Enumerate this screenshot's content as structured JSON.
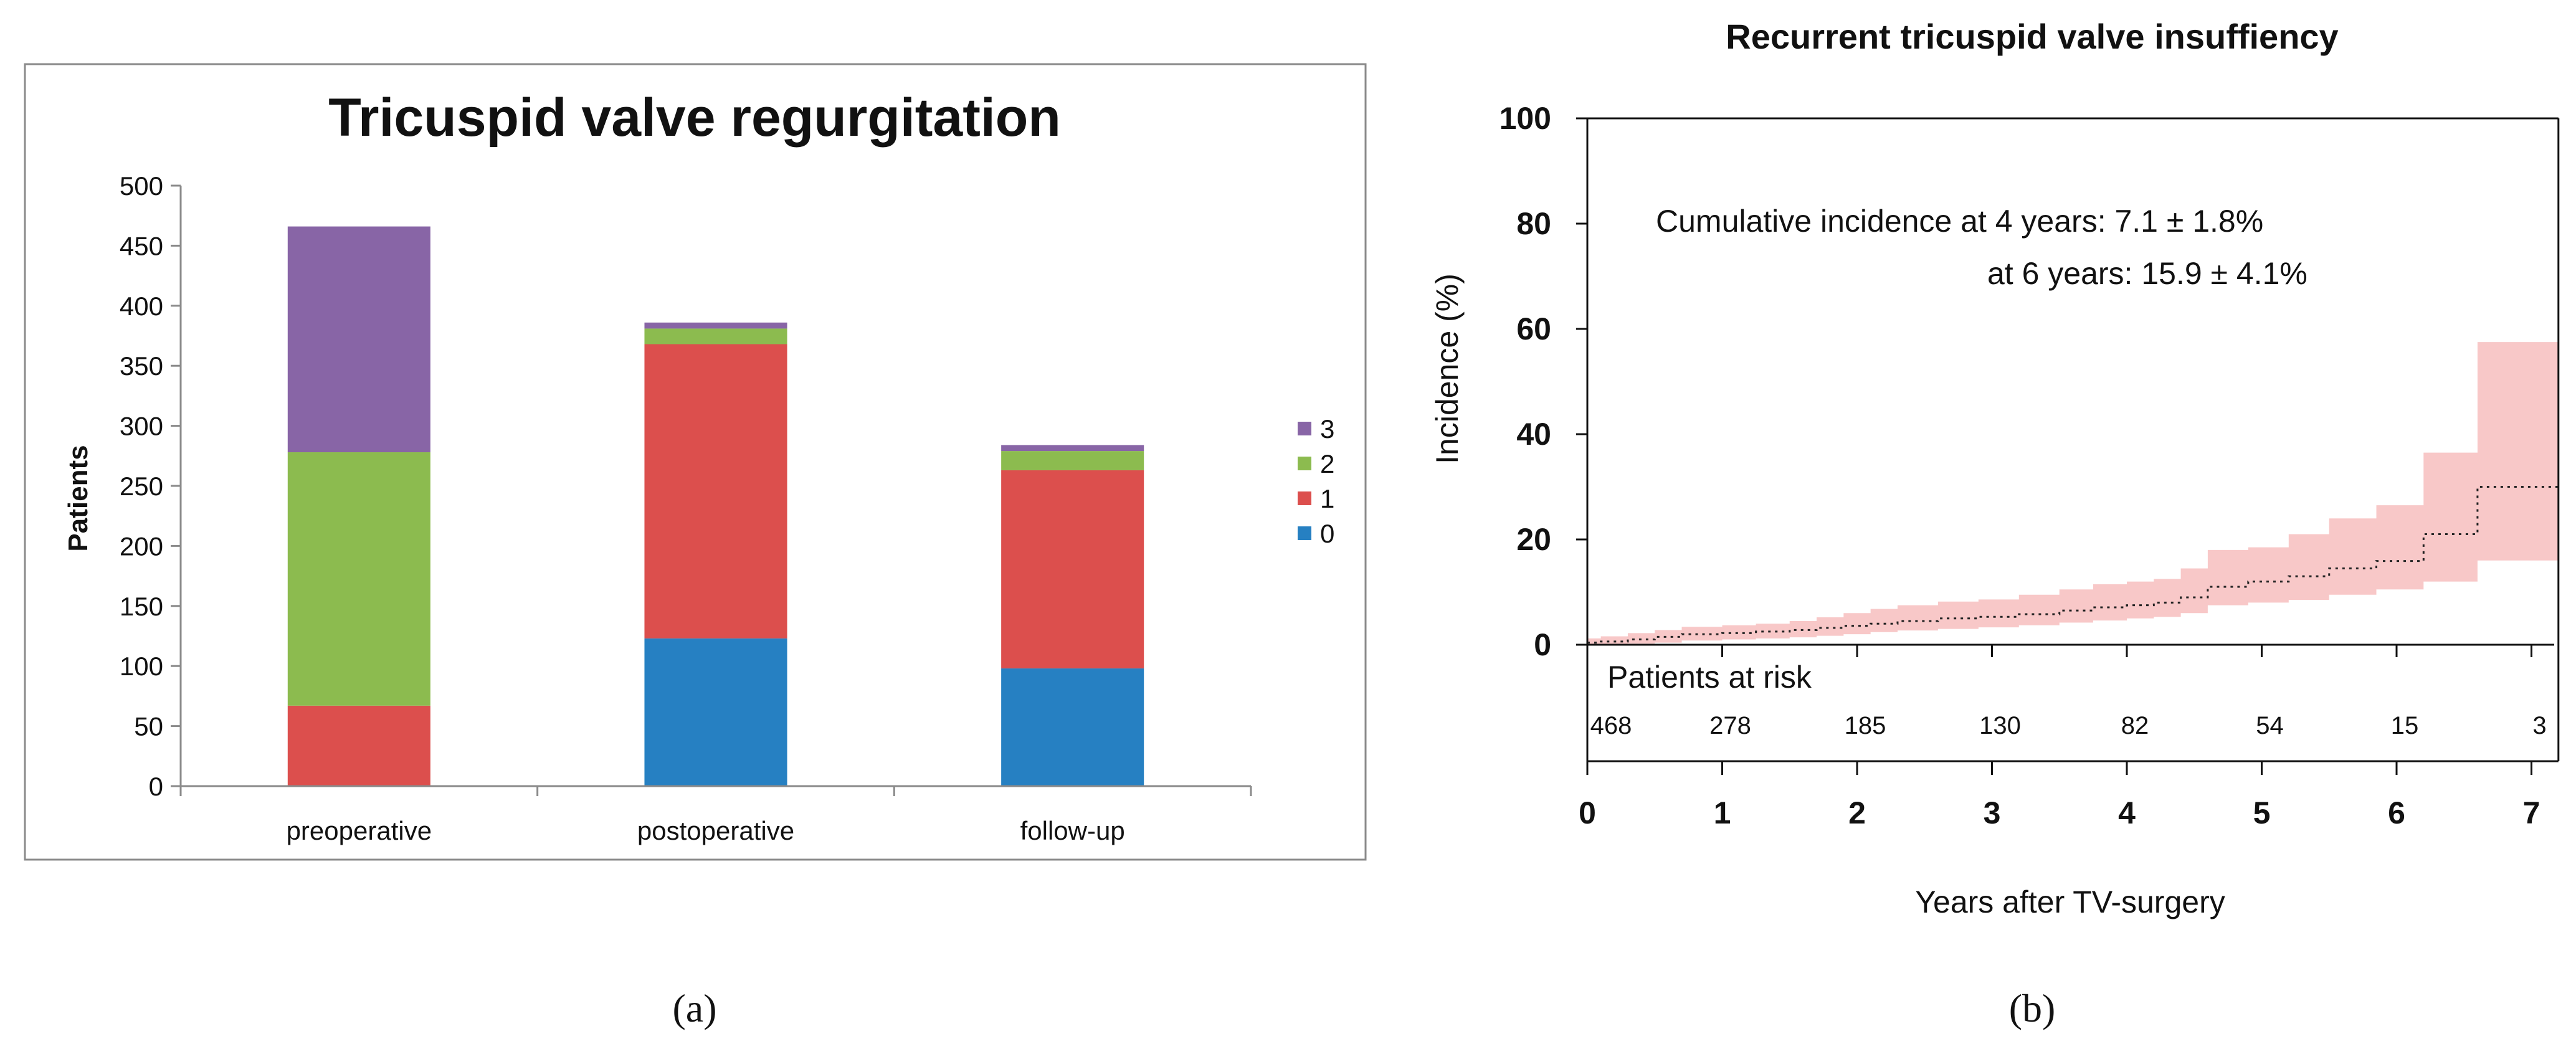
{
  "panels": [
    {
      "id": "a",
      "caption": "(a)",
      "chart_data": {
        "type": "bar",
        "stacked": true,
        "title": "Tricuspid valve regurgitation",
        "xlabel": "",
        "ylabel": "Patients",
        "ylim": [
          0,
          500
        ],
        "yticks": [
          "0",
          "50",
          "100",
          "150",
          "200",
          "250",
          "300",
          "350",
          "400",
          "450",
          "500"
        ],
        "categories": [
          "preoperative",
          "postoperative",
          "follow-up"
        ],
        "series": [
          {
            "name": "0",
            "color": "#2680c2",
            "values": [
              0,
              123,
              98
            ]
          },
          {
            "name": "1",
            "color": "#dc4f4d",
            "values": [
              67,
              245,
              165
            ]
          },
          {
            "name": "2",
            "color": "#8cbb4f",
            "values": [
              211,
              13,
              16
            ]
          },
          {
            "name": "3",
            "color": "#8865a6",
            "values": [
              188,
              5,
              5
            ]
          }
        ],
        "legend_order": [
          "3",
          "2",
          "1",
          "0"
        ],
        "legend_position": "right",
        "grid": false
      }
    },
    {
      "id": "b",
      "caption": "(b)",
      "chart_data": {
        "type": "line",
        "subtype": "step",
        "title": "Recurrent tricuspid valve insuffiency",
        "xlabel": "Years after TV-surgery",
        "ylabel": "Incidence (%)",
        "xlim": [
          0,
          7.2
        ],
        "ylim": [
          0,
          100
        ],
        "xticks": [
          "0",
          "1",
          "2",
          "3",
          "4",
          "5",
          "6",
          "7"
        ],
        "yticks": [
          "0",
          "20",
          "40",
          "60",
          "80",
          "100"
        ],
        "annotations": [
          "Cumulative incidence at 4 years: 7.1 ± 1.8%",
          "at 6 years: 15.9 ± 4.1%"
        ],
        "series": [
          {
            "name": "Cumulative incidence",
            "style": "dotted",
            "color": "#222222",
            "x": [
              0,
              0.1,
              0.3,
              0.5,
              0.7,
              1.0,
              1.25,
              1.5,
              1.7,
              1.9,
              2.1,
              2.3,
              2.6,
              2.9,
              3.2,
              3.5,
              3.75,
              4.0,
              4.2,
              4.4,
              4.6,
              4.9,
              5.2,
              5.5,
              5.85,
              6.2,
              6.6,
              7.2
            ],
            "y": [
              0.4,
              0.6,
              1.0,
              1.5,
              2.0,
              2.2,
              2.5,
              2.8,
              3.2,
              3.6,
              4.0,
              4.5,
              5.0,
              5.3,
              5.8,
              6.5,
              7.1,
              7.5,
              8.0,
              9.0,
              11.0,
              12.0,
              13.0,
              14.5,
              15.9,
              21.0,
              30.0,
              30.0
            ]
          }
        ],
        "confidence_band": {
          "color": "#f8c8c8",
          "x": [
            0,
            0.1,
            0.3,
            0.5,
            0.7,
            1.0,
            1.25,
            1.5,
            1.7,
            1.9,
            2.1,
            2.3,
            2.6,
            2.9,
            3.2,
            3.5,
            3.75,
            4.0,
            4.2,
            4.4,
            4.6,
            4.9,
            5.2,
            5.5,
            5.85,
            6.2,
            6.6,
            7.2
          ],
          "lower": [
            0,
            0,
            0.2,
            0.4,
            0.8,
            1.0,
            1.2,
            1.4,
            1.7,
            2.0,
            2.4,
            2.7,
            3.0,
            3.3,
            3.7,
            4.2,
            4.6,
            5.0,
            5.3,
            6.0,
            7.5,
            8.0,
            8.5,
            9.5,
            10.5,
            12.0,
            16.0,
            16.0
          ],
          "upper": [
            1.2,
            1.6,
            2.2,
            2.8,
            3.4,
            3.7,
            4.0,
            4.5,
            5.2,
            6.0,
            6.8,
            7.5,
            8.2,
            8.6,
            9.5,
            10.5,
            11.5,
            12.0,
            12.5,
            14.5,
            18.0,
            18.5,
            21.0,
            24.0,
            26.5,
            36.5,
            57.5,
            57.5
          ]
        },
        "risk_table": {
          "title": "Patients at risk",
          "values": [
            "468",
            "278",
            "185",
            "130",
            "82",
            "54",
            "15",
            "3"
          ]
        },
        "grid": false
      }
    }
  ]
}
